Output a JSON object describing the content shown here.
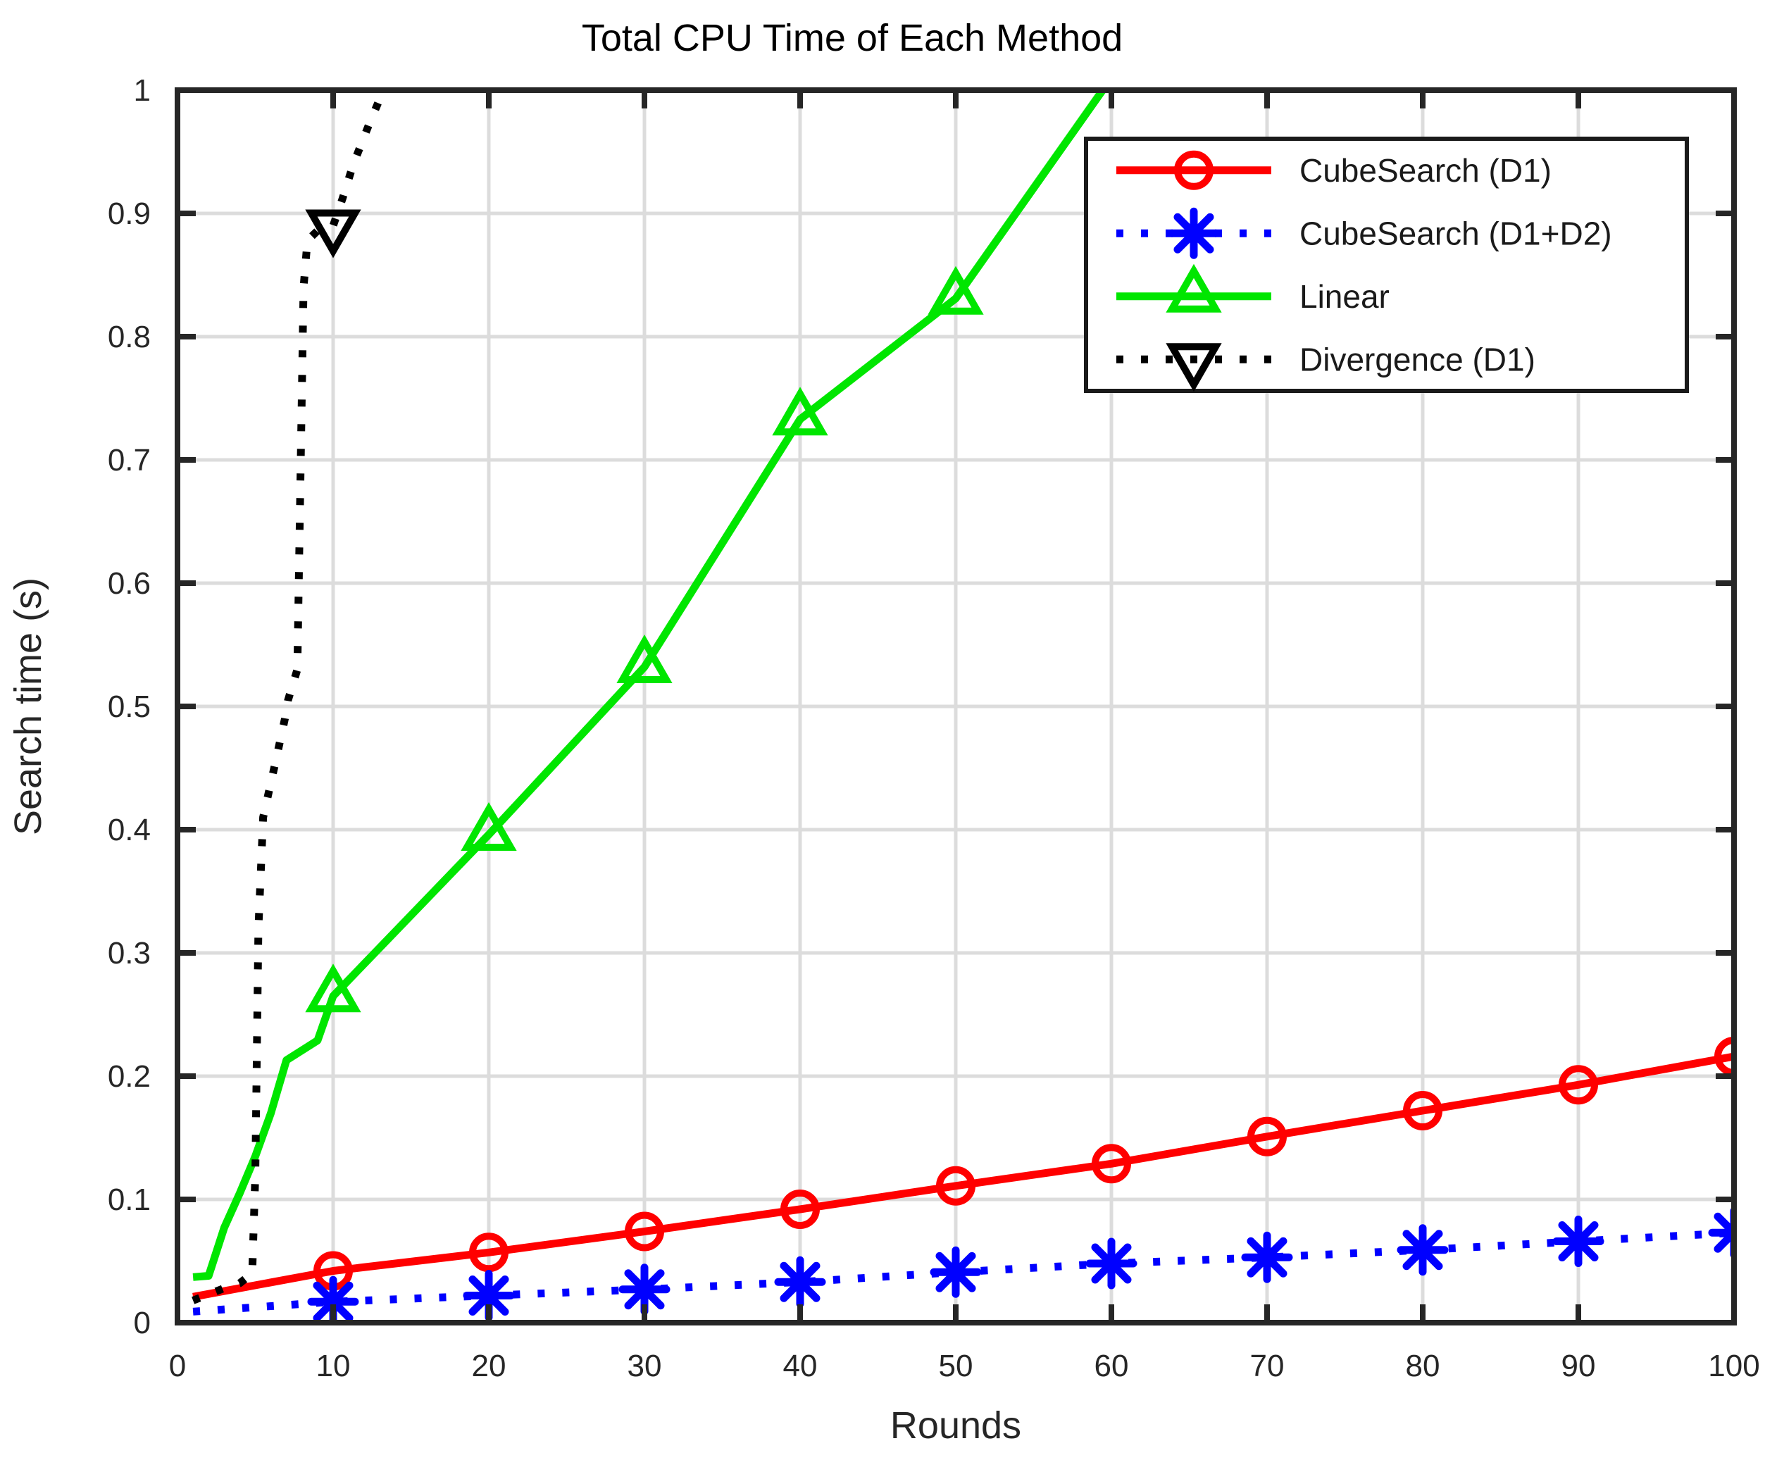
{
  "chart_data": {
    "type": "line",
    "title": "Total CPU Time of Each Method",
    "xlabel": "Rounds",
    "ylabel": "Search time (s)",
    "xlim": [
      0,
      100
    ],
    "ylim": [
      0,
      1
    ],
    "xticks": [
      0,
      10,
      20,
      30,
      40,
      50,
      60,
      70,
      80,
      90,
      100
    ],
    "xtick_labels": [
      "0",
      "10",
      "20",
      "30",
      "40",
      "50",
      "60",
      "70",
      "80",
      "90",
      "100"
    ],
    "yticks": [
      0,
      0.1,
      0.2,
      0.3,
      0.4,
      0.5,
      0.6,
      0.7,
      0.8,
      0.9,
      1
    ],
    "ytick_labels": [
      "0",
      "0.1",
      "0.2",
      "0.3",
      "0.4",
      "0.5",
      "0.6",
      "0.7",
      "0.8",
      "0.9",
      "1"
    ],
    "grid": true,
    "legend_position": "upper-right-inside",
    "style": {
      "grid_color": "#dcdcdc",
      "axis_color": "#262626",
      "background": "#ffffff"
    },
    "series": [
      {
        "name": "CubeSearch (D1)",
        "color": "#ff0000",
        "line_style": "solid",
        "marker": "circle",
        "points": [
          [
            1,
            0.021
          ],
          [
            10,
            0.042
          ],
          [
            20,
            0.057
          ],
          [
            30,
            0.074
          ],
          [
            40,
            0.092
          ],
          [
            50,
            0.111
          ],
          [
            60,
            0.129
          ],
          [
            70,
            0.151
          ],
          [
            80,
            0.172
          ],
          [
            90,
            0.193
          ],
          [
            100,
            0.216
          ]
        ],
        "markers": [
          [
            10,
            0.042
          ],
          [
            20,
            0.057
          ],
          [
            30,
            0.074
          ],
          [
            40,
            0.092
          ],
          [
            50,
            0.111
          ],
          [
            60,
            0.129
          ],
          [
            70,
            0.151
          ],
          [
            80,
            0.172
          ],
          [
            90,
            0.193
          ],
          [
            100,
            0.216
          ]
        ]
      },
      {
        "name": "CubeSearch (D1+D2)",
        "color": "#0000ff",
        "line_style": "dotted",
        "marker": "asterisk",
        "points": [
          [
            1,
            0.009
          ],
          [
            10,
            0.017
          ],
          [
            20,
            0.022
          ],
          [
            30,
            0.027
          ],
          [
            40,
            0.033
          ],
          [
            50,
            0.041
          ],
          [
            60,
            0.048
          ],
          [
            70,
            0.053
          ],
          [
            80,
            0.059
          ],
          [
            90,
            0.066
          ],
          [
            100,
            0.073
          ]
        ],
        "markers": [
          [
            10,
            0.017
          ],
          [
            20,
            0.022
          ],
          [
            30,
            0.027
          ],
          [
            40,
            0.033
          ],
          [
            50,
            0.041
          ],
          [
            60,
            0.048
          ],
          [
            70,
            0.053
          ],
          [
            80,
            0.059
          ],
          [
            90,
            0.066
          ],
          [
            100,
            0.073
          ]
        ]
      },
      {
        "name": "Linear",
        "color": "#00e600",
        "line_style": "solid",
        "marker": "triangle-up",
        "points": [
          [
            1,
            0.037
          ],
          [
            2,
            0.038
          ],
          [
            3,
            0.077
          ],
          [
            4,
            0.105
          ],
          [
            5,
            0.135
          ],
          [
            6,
            0.17
          ],
          [
            7,
            0.213
          ],
          [
            8,
            0.221
          ],
          [
            9,
            0.229
          ],
          [
            10,
            0.265
          ],
          [
            20,
            0.396
          ],
          [
            30,
            0.532
          ],
          [
            40,
            0.733
          ],
          [
            50,
            0.831
          ],
          [
            60,
            1.01
          ]
        ],
        "markers": [
          [
            10,
            0.265
          ],
          [
            20,
            0.396
          ],
          [
            30,
            0.532
          ],
          [
            40,
            0.733
          ],
          [
            50,
            0.831
          ]
        ]
      },
      {
        "name": "Divergence (D1)",
        "color": "#000000",
        "line_style": "dotted",
        "marker": "triangle-down",
        "points": [
          [
            1,
            0.018
          ],
          [
            2,
            0.023
          ],
          [
            3,
            0.028
          ],
          [
            4,
            0.032
          ],
          [
            4.8,
            0.04
          ],
          [
            5.0,
            0.12
          ],
          [
            5.2,
            0.32
          ],
          [
            5.5,
            0.41
          ],
          [
            6.3,
            0.455
          ],
          [
            6.9,
            0.49
          ],
          [
            7.1,
            0.505
          ],
          [
            7.7,
            0.53
          ],
          [
            8.1,
            0.84
          ],
          [
            8.35,
            0.878
          ],
          [
            9,
            0.886
          ],
          [
            10,
            0.89
          ],
          [
            10.6,
            0.912
          ],
          [
            11.3,
            0.94
          ],
          [
            12.3,
            0.972
          ],
          [
            13.4,
            1.005
          ]
        ],
        "markers": [
          [
            10,
            0.89
          ]
        ]
      }
    ]
  }
}
